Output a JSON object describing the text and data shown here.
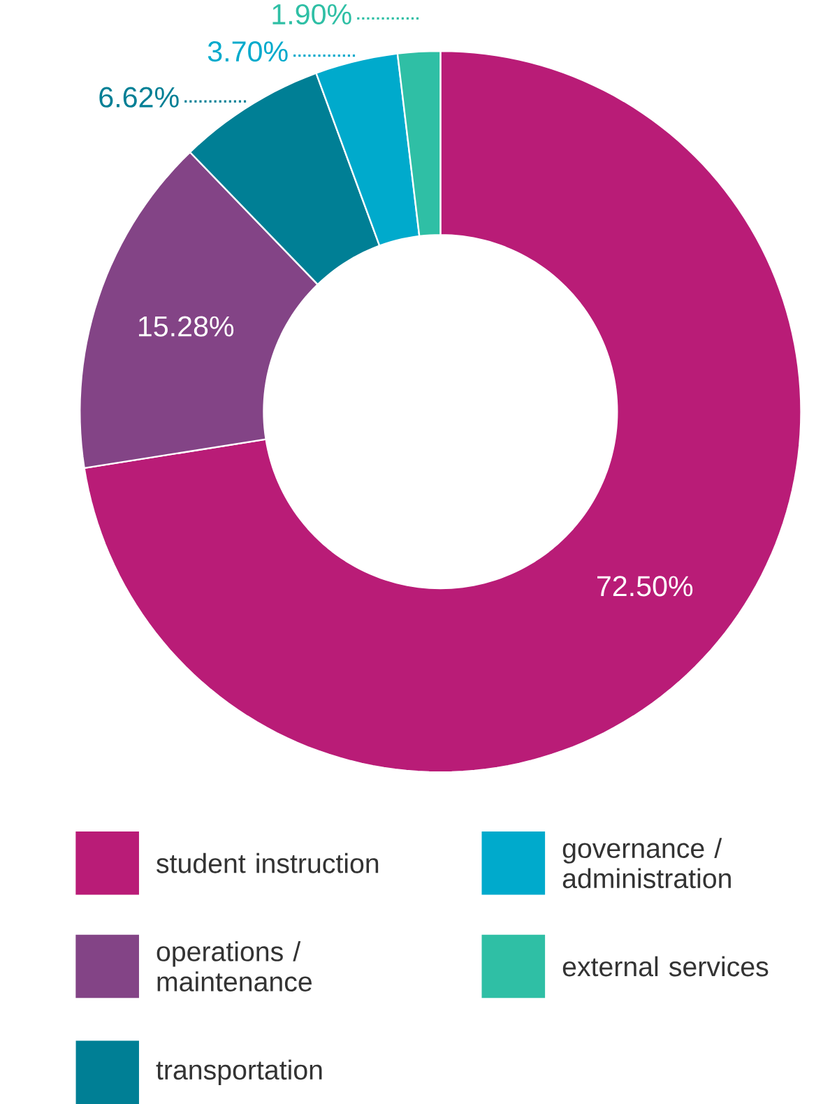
{
  "chart_data": {
    "type": "donut",
    "categories": [
      "student instruction",
      "operations / maintenance",
      "transportation",
      "governance / administration",
      "external services"
    ],
    "values": [
      72.5,
      15.28,
      6.62,
      3.7,
      1.9
    ],
    "colors": [
      "#b91c77",
      "#834486",
      "#007f95",
      "#00aacc",
      "#2fbfa5"
    ],
    "value_labels": [
      "72.50%",
      "15.28%",
      "6.62%",
      "3.70%",
      "1.90%"
    ],
    "legend": "bottom"
  }
}
